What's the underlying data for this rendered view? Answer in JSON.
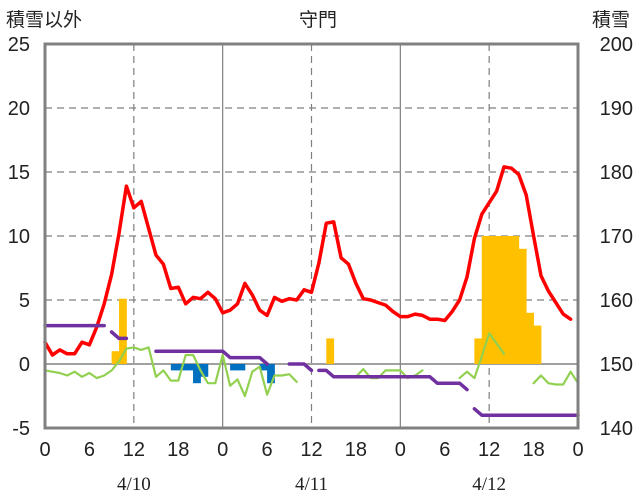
{
  "chart_data": {
    "type": "bar",
    "title": "守門",
    "left_axis_label": "積雪以外",
    "right_axis_label": "積雪",
    "left_ylim": [
      -5,
      25
    ],
    "left_yticks": [
      "-5",
      "0",
      "5",
      "10",
      "15",
      "20",
      "25"
    ],
    "right_ylim": [
      140,
      200
    ],
    "right_yticks": [
      "140",
      "150",
      "160",
      "170",
      "180",
      "190",
      "200"
    ],
    "xlim": [
      0,
      72
    ],
    "x_unit": "hours from 4/10 00:00",
    "xticks": [
      "0",
      "6",
      "12",
      "18",
      "0",
      "6",
      "12",
      "18",
      "0",
      "6",
      "12",
      "18",
      "0"
    ],
    "date_labels": [
      {
        "text": "4/10",
        "x": 12
      },
      {
        "text": "4/11",
        "x": 36
      },
      {
        "text": "4/12",
        "x": 60
      }
    ],
    "grid": {
      "dashed_x": [
        12,
        36,
        60
      ],
      "solid_x": [
        24,
        48
      ],
      "horizontal": true
    },
    "series": [
      {
        "kind": "bar",
        "color": "#FFC000",
        "axis": "left",
        "points": [
          [
            9.5,
            1.0
          ],
          [
            10.5,
            5.1
          ],
          [
            38.5,
            2.0
          ],
          [
            58.5,
            2.0
          ],
          [
            59.5,
            10.0
          ],
          [
            60.5,
            10.0
          ],
          [
            61.5,
            10.0
          ],
          [
            62.5,
            10.0
          ],
          [
            63.5,
            10.0
          ],
          [
            64.5,
            9.0
          ],
          [
            65.5,
            4.0
          ],
          [
            66.5,
            3.0
          ]
        ]
      },
      {
        "kind": "bar",
        "color": "#0070C0",
        "axis": "left",
        "points": [
          [
            17.5,
            -0.5
          ],
          [
            18.5,
            -0.5
          ],
          [
            19.5,
            -0.5
          ],
          [
            20.5,
            -1.5
          ],
          [
            21.5,
            -1.0
          ],
          [
            25.5,
            -0.5
          ],
          [
            26.5,
            -0.5
          ],
          [
            29.5,
            -0.5
          ],
          [
            30.5,
            -1.5
          ]
        ]
      },
      {
        "kind": "line",
        "color": "#FF0000",
        "axis": "left",
        "points": [
          [
            0,
            1.7
          ],
          [
            1,
            0.7
          ],
          [
            2,
            1.1
          ],
          [
            3,
            0.8
          ],
          [
            4,
            0.8
          ],
          [
            5,
            1.7
          ],
          [
            6,
            1.5
          ],
          [
            7,
            2.9
          ],
          [
            8,
            4.7
          ],
          [
            9,
            7.0
          ],
          [
            10,
            10.2
          ],
          [
            11,
            13.9
          ],
          [
            12,
            12.2
          ],
          [
            13,
            12.7
          ],
          [
            14,
            10.6
          ],
          [
            15,
            8.5
          ],
          [
            16,
            7.8
          ],
          [
            17,
            5.9
          ],
          [
            18,
            6.0
          ],
          [
            19,
            4.7
          ],
          [
            20,
            5.2
          ],
          [
            21,
            5.1
          ],
          [
            22,
            5.6
          ],
          [
            23,
            5.1
          ],
          [
            24,
            4.0
          ],
          [
            25,
            4.2
          ],
          [
            26,
            4.7
          ],
          [
            27,
            6.3
          ],
          [
            28,
            5.4
          ],
          [
            29,
            4.2
          ],
          [
            30,
            3.8
          ],
          [
            31,
            5.2
          ],
          [
            32,
            4.9
          ],
          [
            33,
            5.1
          ],
          [
            34,
            5.0
          ],
          [
            35,
            5.8
          ],
          [
            36,
            5.6
          ],
          [
            37,
            7.9
          ],
          [
            38,
            11.0
          ],
          [
            39,
            11.1
          ],
          [
            40,
            8.3
          ],
          [
            41,
            7.8
          ],
          [
            42,
            6.3
          ],
          [
            43,
            5.1
          ],
          [
            44,
            5.0
          ],
          [
            45,
            4.8
          ],
          [
            46,
            4.6
          ],
          [
            47,
            4.1
          ],
          [
            48,
            3.7
          ],
          [
            49,
            3.7
          ],
          [
            50,
            3.9
          ],
          [
            51,
            3.8
          ],
          [
            52,
            3.5
          ],
          [
            53,
            3.5
          ],
          [
            54,
            3.4
          ],
          [
            55,
            4.1
          ],
          [
            56,
            5.0
          ],
          [
            57,
            6.8
          ],
          [
            58,
            9.8
          ],
          [
            59,
            11.7
          ],
          [
            60,
            12.6
          ],
          [
            61,
            13.5
          ],
          [
            62,
            15.4
          ],
          [
            63,
            15.3
          ],
          [
            64,
            14.8
          ],
          [
            65,
            13.2
          ],
          [
            66,
            10.0
          ],
          [
            67,
            6.9
          ],
          [
            68,
            5.7
          ],
          [
            69,
            4.8
          ],
          [
            70,
            3.9
          ],
          [
            71,
            3.5
          ]
        ]
      },
      {
        "kind": "line",
        "color": "#92D050",
        "axis": "left",
        "points": [
          [
            0,
            -0.5
          ],
          [
            1,
            -0.6
          ],
          [
            2,
            -0.7
          ],
          [
            3,
            -0.9
          ],
          [
            4,
            -0.6
          ],
          [
            5,
            -1.0
          ],
          [
            6,
            -0.7
          ],
          [
            7,
            -1.1
          ],
          [
            8,
            -0.9
          ],
          [
            9,
            -0.5
          ],
          [
            10,
            0.2
          ],
          [
            11,
            1.2
          ],
          [
            12,
            1.3
          ],
          [
            13,
            1.1
          ],
          [
            14,
            1.3
          ],
          [
            15,
            -1.0
          ],
          [
            16,
            -0.5
          ],
          [
            17,
            -1.3
          ],
          [
            18,
            -1.3
          ],
          [
            19,
            0.7
          ],
          [
            20,
            0.7
          ],
          [
            21,
            -0.5
          ],
          [
            22,
            -1.5
          ],
          [
            23,
            -1.5
          ],
          [
            24,
            0.7
          ],
          [
            25,
            -1.7
          ],
          [
            26,
            -1.2
          ],
          [
            27,
            -2.5
          ],
          [
            28,
            -0.6
          ],
          [
            29,
            -0.2
          ],
          [
            30,
            -2.4
          ],
          [
            31,
            -0.9
          ],
          [
            32,
            -0.9
          ],
          [
            33,
            -0.8
          ],
          [
            34,
            -1.4
          ],
          [
            null,
            null
          ],
          [
            42,
            -1.0
          ],
          [
            43,
            -0.4
          ],
          [
            44,
            -1.1
          ],
          [
            45,
            -1.1
          ],
          [
            46,
            -0.5
          ],
          [
            47,
            -0.5
          ],
          [
            48,
            -0.5
          ],
          [
            49,
            -1.1
          ],
          [
            50,
            -0.9
          ],
          [
            51,
            -0.5
          ],
          [
            null,
            null
          ],
          [
            56,
            -1.1
          ],
          [
            57,
            -0.6
          ],
          [
            58,
            -1.1
          ],
          [
            59,
            0.6
          ],
          [
            60,
            2.4
          ],
          [
            61,
            1.6
          ],
          [
            62,
            0.8
          ],
          [
            null,
            null
          ],
          [
            66,
            -1.5
          ],
          [
            67,
            -0.9
          ],
          [
            68,
            -1.5
          ],
          [
            69,
            -1.6
          ],
          [
            70,
            -1.6
          ],
          [
            71,
            -0.6
          ],
          [
            72,
            -1.5
          ]
        ]
      },
      {
        "kind": "line",
        "color": "#7030A0",
        "axis": "right",
        "points": [
          [
            0,
            156
          ],
          [
            8,
            156
          ],
          [
            null,
            null
          ],
          [
            9,
            155
          ],
          [
            10,
            154
          ],
          [
            11,
            154
          ],
          [
            null,
            null
          ],
          [
            15,
            152
          ],
          [
            23,
            152
          ],
          [
            24,
            152
          ],
          [
            25,
            151
          ],
          [
            29,
            151
          ],
          [
            30,
            150
          ],
          [
            null,
            null
          ],
          [
            33,
            150
          ],
          [
            35,
            150
          ],
          [
            36,
            149
          ],
          [
            null,
            null
          ],
          [
            37,
            149
          ],
          [
            38,
            149
          ],
          [
            39,
            148
          ],
          [
            52,
            148
          ],
          [
            53,
            147
          ],
          [
            56,
            147
          ],
          [
            57,
            146
          ],
          [
            null,
            null
          ],
          [
            58,
            143
          ],
          [
            59,
            142
          ],
          [
            72,
            142
          ]
        ]
      }
    ]
  }
}
